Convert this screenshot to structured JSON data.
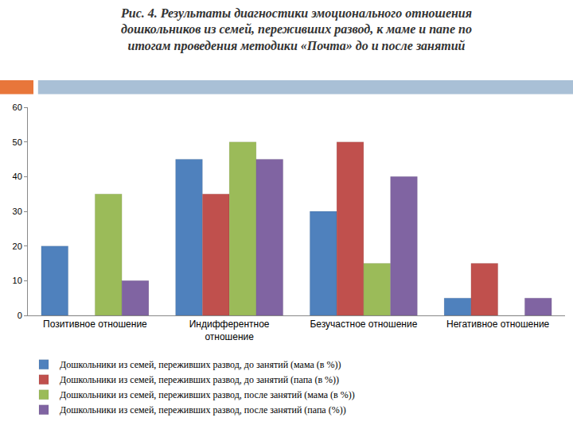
{
  "chart_data": {
    "type": "bar",
    "title": "Рис. 4. Результаты диагностики эмоционального отношения дошкольников из семей, переживших развод, к маме и папе по итогам проведения методики «Почта» до и после занятий",
    "categories": [
      "Позитивное отношение",
      "Индифферентное отношение",
      "Безучастное отношение",
      "Негативное отношение"
    ],
    "series": [
      {
        "name": "Дошкольники из семей, переживших развод, до занятий (мама (в %))",
        "color": "#4f81bd",
        "values": [
          20,
          45,
          30,
          5
        ]
      },
      {
        "name": "Дошкольники из семей, переживших развод, до занятий (папа (в %))",
        "color": "#c0504d",
        "values": [
          0,
          35,
          50,
          15
        ]
      },
      {
        "name": "Дошкольники из семей, переживших развод, после занятий (мама (в %))",
        "color": "#9bbb59",
        "values": [
          35,
          50,
          15,
          0
        ]
      },
      {
        "name": "Дошкольники из семей, переживших развод, после занятий (папа (%))",
        "color": "#8064a2",
        "values": [
          10,
          45,
          40,
          5
        ]
      }
    ],
    "ylim": [
      0,
      60
    ],
    "yticks": [
      0,
      10,
      20,
      30,
      40,
      50,
      60
    ],
    "grid": false,
    "legend": "bottom"
  }
}
